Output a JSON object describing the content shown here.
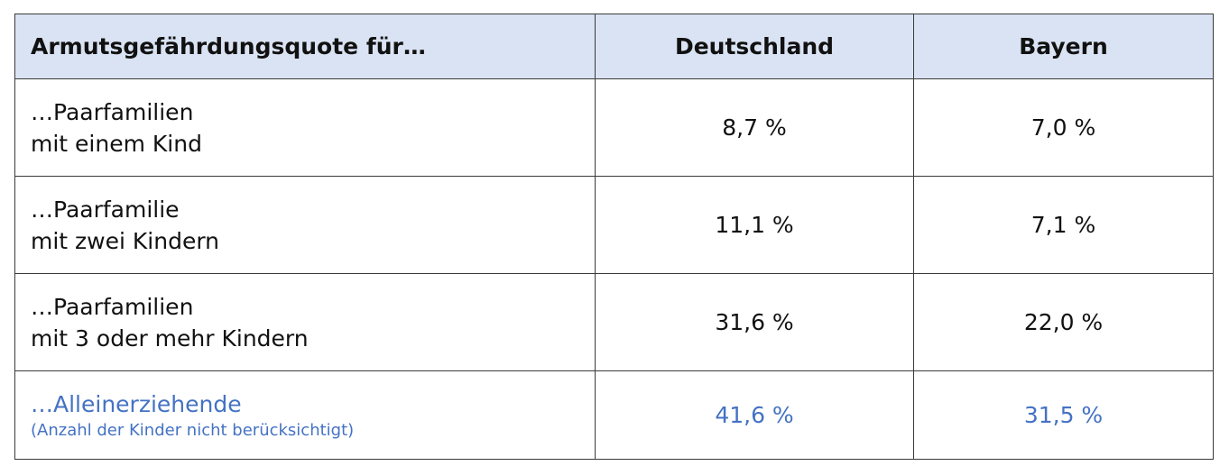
{
  "table": {
    "headers": [
      "Armutsgefährdungsquote für…",
      "Deutschland",
      "Bayern"
    ],
    "rows": [
      {
        "label_line1": "…Paarfamilien",
        "label_line2": "mit einem Kind",
        "deutschland": "8,7 %",
        "bayern": "7,0 %"
      },
      {
        "label_line1": "…Paarfamilie",
        "label_line2": "mit zwei Kindern",
        "deutschland": "11,1 %",
        "bayern": "7,1 %"
      },
      {
        "label_line1": "…Paarfamilien",
        "label_line2": "mit 3 oder mehr Kindern",
        "deutschland": "31,6 %",
        "bayern": "22,0 %"
      },
      {
        "label_line1": "…Alleinerziehende",
        "note": "(Anzahl der Kinder nicht berücksichtigt)",
        "deutschland": "41,6 %",
        "bayern": "31,5 %"
      }
    ]
  },
  "colors": {
    "header_background": "#dae3f3",
    "highlight_text": "#4472c4",
    "border": "#3a3a3a"
  }
}
